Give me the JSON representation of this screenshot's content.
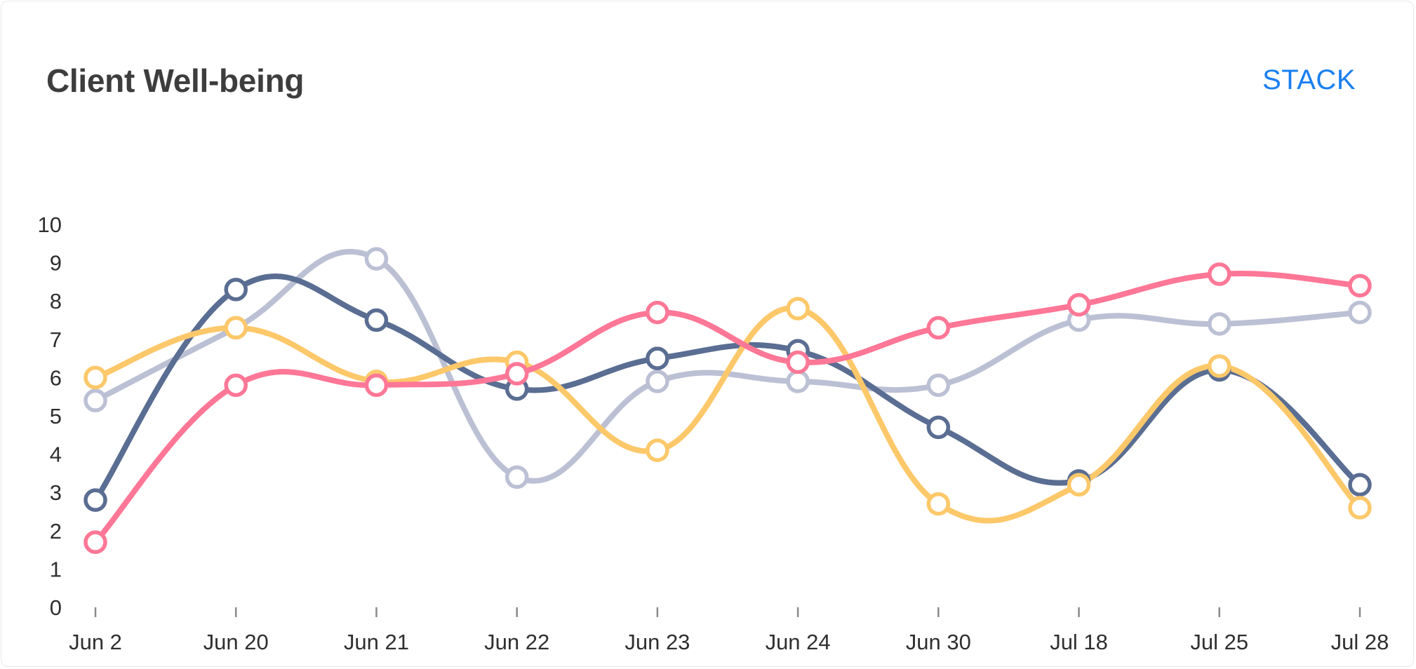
{
  "header": {
    "title": "Client Well-being",
    "stack_label": "STACK"
  },
  "colors": {
    "accent": "#1a7ff0",
    "title": "#3d3d3d"
  },
  "chart_data": {
    "type": "line",
    "title": "Client Well-being",
    "xlabel": "",
    "ylabel": "",
    "categories": [
      "Jun 2",
      "Jun 20",
      "Jun 21",
      "Jun 22",
      "Jun 23",
      "Jun 24",
      "Jun 30",
      "Jul 18",
      "Jul 25",
      "Jul 28"
    ],
    "y_ticks": [
      0,
      1,
      2,
      3,
      4,
      5,
      6,
      7,
      8,
      9,
      10
    ],
    "ylim": [
      0,
      10
    ],
    "grid": false,
    "legend": "none",
    "smooth": true,
    "series": [
      {
        "color": "#bbc0d4",
        "values": [
          5.4,
          7.3,
          9.1,
          3.4,
          5.9,
          5.9,
          5.8,
          7.5,
          7.4,
          7.7
        ]
      },
      {
        "color": "#5a6d92",
        "values": [
          2.8,
          8.3,
          7.5,
          5.7,
          6.5,
          6.7,
          4.7,
          3.3,
          6.2,
          3.2
        ]
      },
      {
        "color": "#fdc86a",
        "values": [
          6.0,
          7.3,
          5.9,
          6.4,
          4.1,
          7.8,
          2.7,
          3.2,
          6.3,
          2.6
        ]
      },
      {
        "color": "#fe7796",
        "values": [
          1.7,
          5.8,
          5.8,
          6.1,
          7.7,
          6.4,
          7.3,
          7.9,
          8.7,
          8.4
        ]
      }
    ]
  }
}
